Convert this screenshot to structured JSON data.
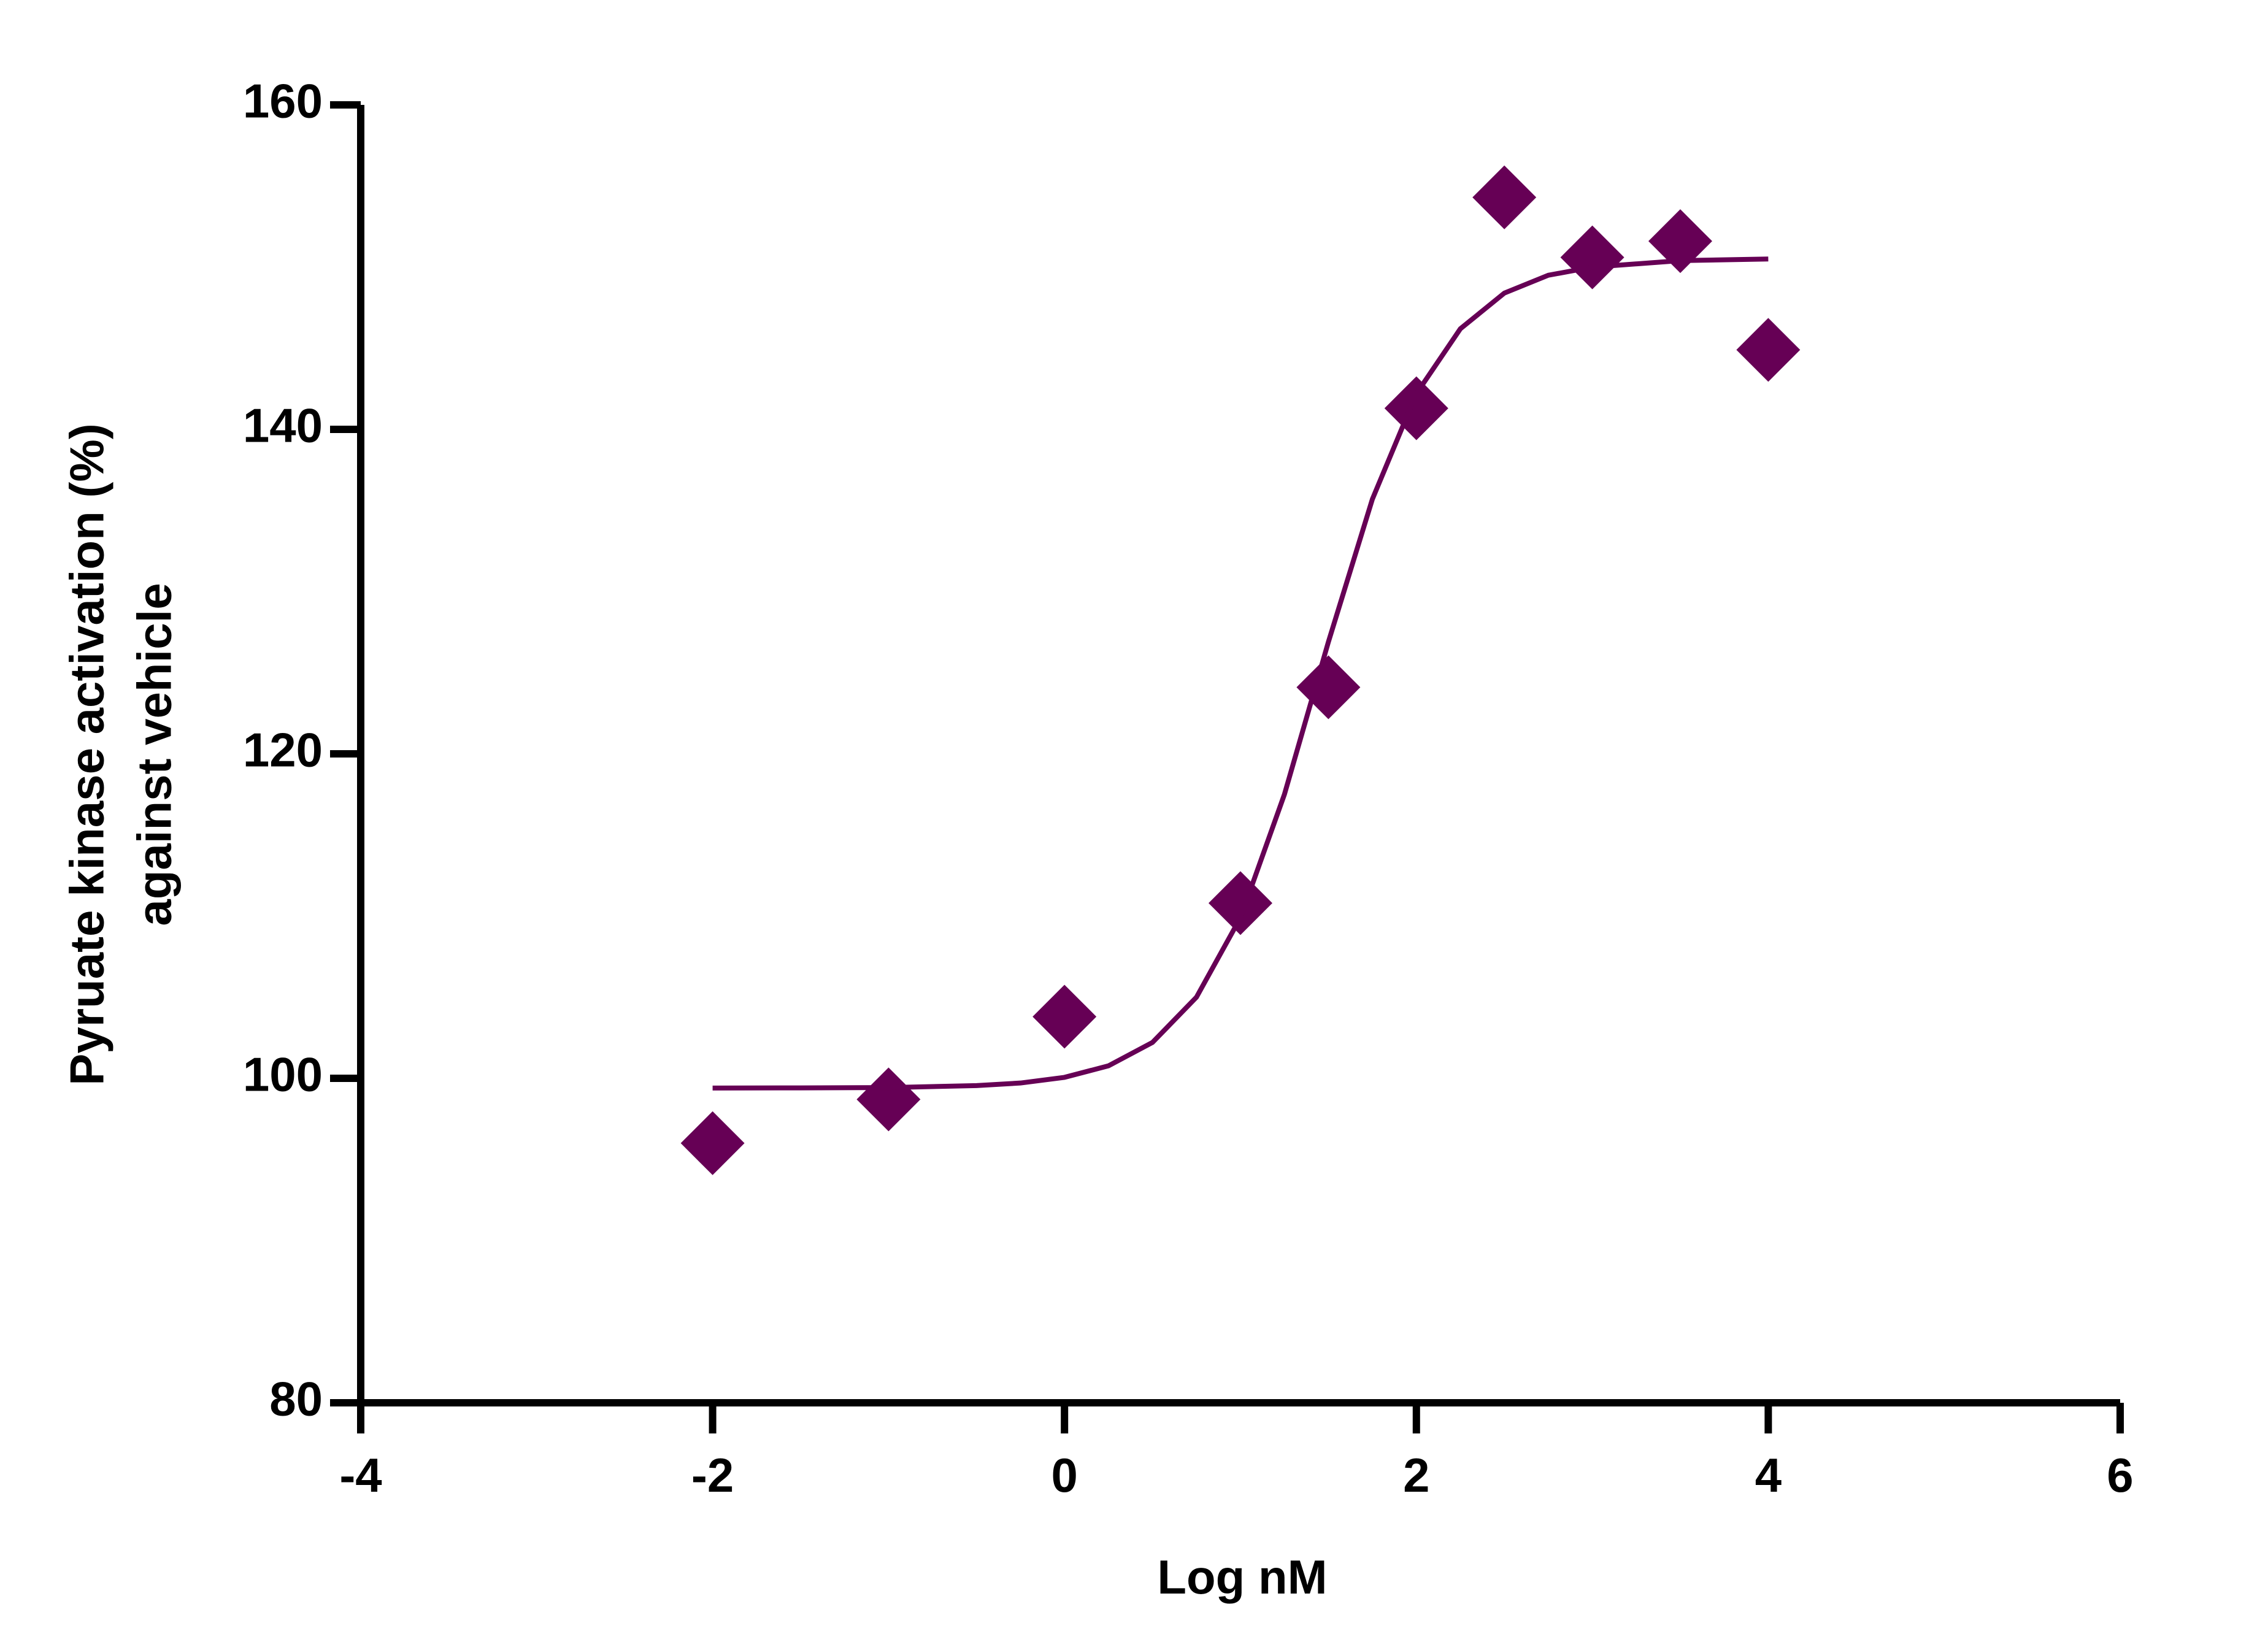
{
  "chart_data": {
    "type": "scatter",
    "xlabel": "Log nM",
    "ylabel": [
      "Pyruate kinase activation (%)",
      "against vehicle"
    ],
    "xlim": [
      -4,
      6
    ],
    "xticks": [
      -4,
      -2,
      0,
      2,
      4,
      6
    ],
    "ylim": [
      80,
      160
    ],
    "yticks": [
      80,
      100,
      120,
      140,
      160
    ],
    "grid": false,
    "series": [
      {
        "color": "#660055",
        "marker": "diamond",
        "x": [
          -2,
          -1,
          0,
          1,
          1.5,
          2,
          2.5,
          3,
          3.5,
          4
        ],
        "values": [
          96,
          98.7,
          103.8,
          110.8,
          124.1,
          141.3,
          154.3,
          150.6,
          151.6,
          144.9
        ]
      },
      {
        "color": "#660055",
        "marker": "line",
        "x": [
          -2,
          -1.5,
          -1,
          -0.5,
          -0.25,
          0,
          0.25,
          0.5,
          0.75,
          1,
          1.25,
          1.5,
          1.75,
          2,
          2.25,
          2.5,
          2.75,
          3,
          3.5,
          4
        ],
        "values": [
          99.4,
          99.41,
          99.43,
          99.55,
          99.71,
          100.06,
          100.77,
          102.21,
          105.0,
          109.9,
          117.5,
          126.9,
          135.7,
          142.2,
          146.2,
          148.4,
          149.5,
          150.0,
          150.4,
          150.5
        ]
      }
    ]
  }
}
